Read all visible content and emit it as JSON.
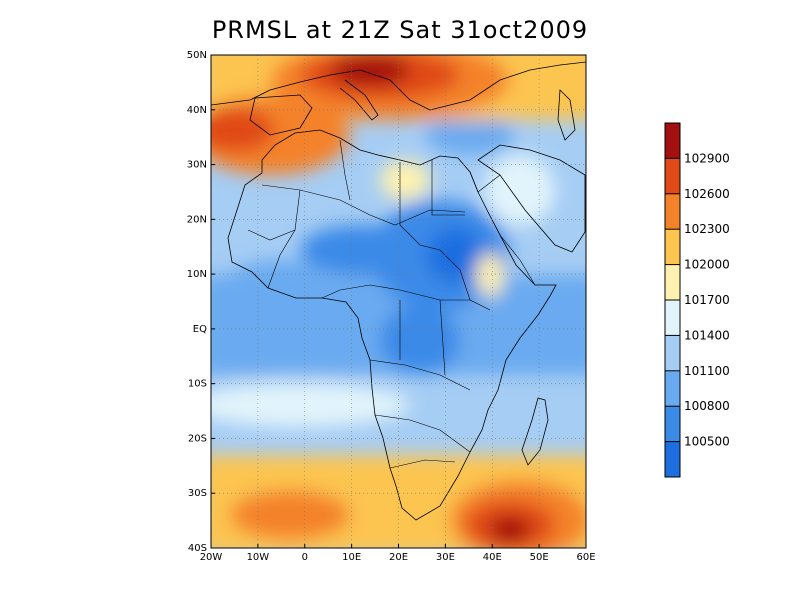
{
  "title": "PRMSL at 21Z Sat 31oct2009",
  "axes": {
    "lon_labels": [
      "20W",
      "10W",
      "0",
      "10E",
      "20E",
      "30E",
      "40E",
      "50E",
      "60E"
    ],
    "lat_labels": [
      "50N",
      "40N",
      "30N",
      "20N",
      "10N",
      "EQ",
      "10S",
      "20S",
      "30S",
      "40S"
    ],
    "lon_range": [
      -20,
      60
    ],
    "lat_range": [
      -40,
      50
    ],
    "grid": "dotted"
  },
  "colorbar": {
    "levels": [
      "100500",
      "100800",
      "101100",
      "101400",
      "101700",
      "102000",
      "102300",
      "102600",
      "102900"
    ],
    "colors": [
      "#1e6ee0",
      "#3a8ae8",
      "#6aaaf0",
      "#a6cdf4",
      "#e2f4fb",
      "#fff2b0",
      "#fcc550",
      "#f4822a",
      "#e04a16",
      "#a31010"
    ]
  },
  "colors": {
    "map_background": "#a6cdf4",
    "coastline": "#000000"
  }
}
